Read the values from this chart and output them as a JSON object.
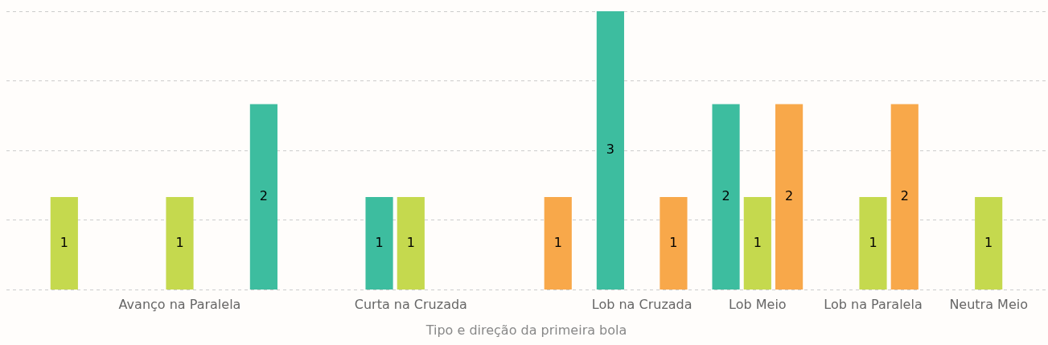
{
  "chart_data": {
    "type": "bar",
    "xlabel": "Tipo e direção da primeira bola",
    "categories": [
      null,
      "Avanço na Paralela",
      null,
      "Curta na Cruzada",
      null,
      "Lob na Cruzada",
      "Lob Meio",
      "Lob na Paralela",
      "Neutra Meio"
    ],
    "series": [
      {
        "color": "#3dbd9f",
        "values": [
          null,
          null,
          2,
          1,
          null,
          3,
          2,
          null,
          null
        ]
      },
      {
        "color": "#c5d94e",
        "values": [
          1,
          1,
          null,
          1,
          null,
          null,
          1,
          1,
          1
        ]
      },
      {
        "color": "#f8a84a",
        "values": [
          null,
          null,
          null,
          null,
          1,
          1,
          2,
          2,
          null
        ]
      }
    ],
    "ylim": [
      0,
      3
    ],
    "yticks": [
      {
        "value": 0,
        "label": null
      },
      {
        "value": 0.75,
        "label": null
      },
      {
        "value": 1.5,
        "label": null
      },
      {
        "value": 2.25,
        "label": null
      },
      {
        "value": 3,
        "label": null
      }
    ],
    "grid": "y",
    "legend": false,
    "tick_labels": "x",
    "data_labels": true
  }
}
